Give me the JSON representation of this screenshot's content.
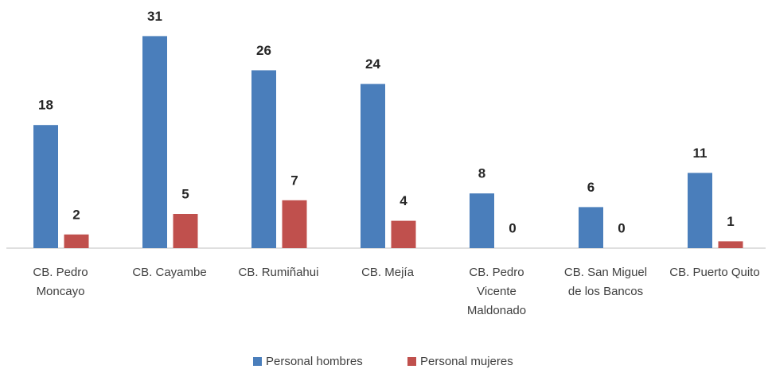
{
  "chart_data": {
    "type": "bar",
    "categories": [
      [
        "CB. Pedro",
        "Moncayo"
      ],
      [
        "CB. Cayambe"
      ],
      [
        "CB. Rumiñahui"
      ],
      [
        "CB. Mejía"
      ],
      [
        "CB. Pedro",
        "Vicente",
        "Maldonado"
      ],
      [
        "CB. San Miguel",
        "de los Bancos"
      ],
      [
        "CB. Puerto Quito"
      ]
    ],
    "series": [
      {
        "name": "Personal hombres",
        "color": "#4a7ebb",
        "values": [
          18,
          31,
          26,
          24,
          8,
          6,
          11
        ]
      },
      {
        "name": "Personal mujeres",
        "color": "#c0504d",
        "values": [
          2,
          5,
          7,
          4,
          0,
          0,
          1
        ]
      }
    ],
    "ylim": [
      0,
      35
    ],
    "legend": "bottom"
  }
}
